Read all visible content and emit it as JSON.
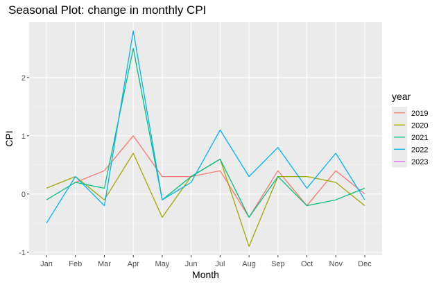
{
  "chart_data": {
    "type": "line",
    "title": "Seasonal Plot: change in monthly CPI",
    "xlabel": "Month",
    "ylabel": "CPI",
    "categories": [
      "Jan",
      "Feb",
      "Mar",
      "Apr",
      "May",
      "Jun",
      "Jul",
      "Aug",
      "Sep",
      "Oct",
      "Nov",
      "Dec"
    ],
    "ylim": [
      -1.05,
      2.95
    ],
    "yticks": [
      -1,
      0,
      1,
      2
    ],
    "grid": true,
    "legend": {
      "title": "year",
      "position": "right"
    },
    "series": [
      {
        "name": "2019",
        "color": "#F8766D",
        "values": [
          null,
          0.2,
          0.4,
          1.0,
          0.3,
          0.3,
          0.4,
          -0.4,
          0.4,
          -0.2,
          0.4,
          0.0
        ]
      },
      {
        "name": "2020",
        "color": "#A3A500",
        "values": [
          0.1,
          0.3,
          -0.1,
          0.7,
          -0.4,
          0.3,
          0.6,
          -0.9,
          0.3,
          0.3,
          0.2,
          -0.2
        ]
      },
      {
        "name": "2021",
        "color": "#00BF7D",
        "values": [
          -0.1,
          0.2,
          0.1,
          2.5,
          -0.1,
          0.3,
          0.6,
          -0.4,
          0.3,
          -0.2,
          -0.1,
          0.1
        ]
      },
      {
        "name": "2022",
        "color": "#00B0F6",
        "values": [
          -0.5,
          0.3,
          -0.2,
          2.8,
          -0.1,
          0.2,
          1.1,
          0.3,
          0.8,
          0.1,
          0.7,
          -0.1
        ]
      },
      {
        "name": "2023",
        "color": "#E76BF3",
        "values": [
          null,
          null,
          null,
          null,
          null,
          null,
          null,
          null,
          null,
          null,
          null,
          null
        ]
      }
    ]
  }
}
